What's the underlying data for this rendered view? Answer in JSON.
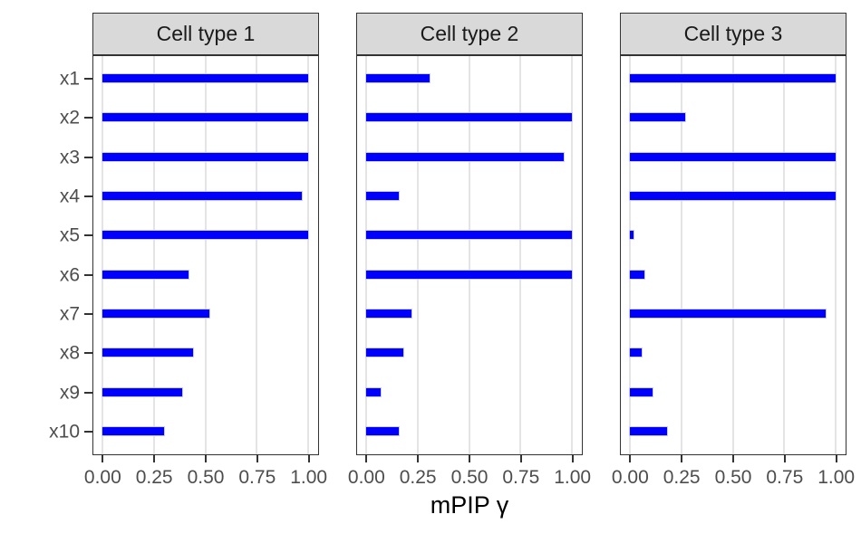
{
  "chart_data": {
    "type": "bar",
    "orientation": "horizontal",
    "title": "",
    "xlabel": "mPIP γ",
    "ylabel": "",
    "categories": [
      "x1",
      "x2",
      "x3",
      "x4",
      "x5",
      "x6",
      "x7",
      "x8",
      "x9",
      "x10"
    ],
    "series": [
      {
        "name": "Cell type 1",
        "values": [
          1.0,
          1.0,
          1.0,
          0.97,
          1.0,
          0.42,
          0.52,
          0.44,
          0.39,
          0.3
        ]
      },
      {
        "name": "Cell type 2",
        "values": [
          0.31,
          1.0,
          0.96,
          0.16,
          1.0,
          1.0,
          0.22,
          0.18,
          0.07,
          0.16
        ]
      },
      {
        "name": "Cell type 3",
        "values": [
          1.0,
          0.27,
          1.0,
          1.0,
          0.02,
          0.07,
          0.95,
          0.06,
          0.11,
          0.18
        ]
      }
    ],
    "x_ticks": {
      "values": [
        0,
        0.25,
        0.5,
        0.75,
        1
      ],
      "labels": [
        "0.00",
        "0.25",
        "0.50",
        "0.75",
        "1.00"
      ]
    },
    "xlim": [
      0,
      1
    ],
    "grid": "vertical major gridlines only",
    "legend": "none",
    "facet_layout": "3 columns, shared y axis on left panel",
    "colors": {
      "bar": "#0000FB",
      "bar_halo": "#C9CCFF",
      "strip_bg": "#D9D9D9",
      "panel_border": "#333333",
      "gridline": "#E4E4E4",
      "axis_text": "#4D4D4D",
      "axis_title": "#000000",
      "tick_mark": "#333333",
      "background": "#FFFFFF"
    }
  }
}
